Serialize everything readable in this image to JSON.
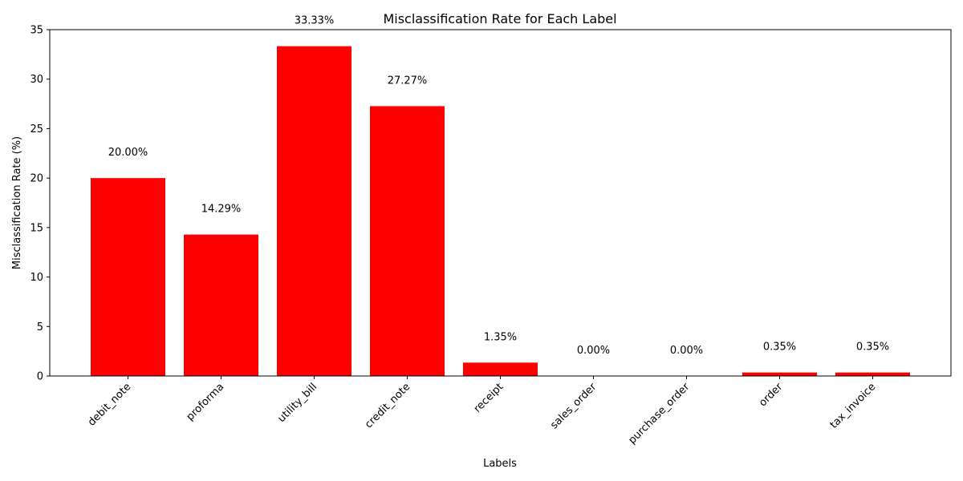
{
  "chart_data": {
    "type": "bar",
    "title": "Misclassification Rate for Each Label",
    "xlabel": "Labels",
    "ylabel": "Misclassification Rate (%)",
    "categories": [
      "debit_note",
      "proforma",
      "utility_bill",
      "credit_note",
      "receipt",
      "sales_order",
      "purchase_order",
      "order",
      "tax_invoice"
    ],
    "values": [
      20.0,
      14.29,
      33.33,
      27.27,
      1.35,
      0.0,
      0.0,
      0.35,
      0.35
    ],
    "data_labels": [
      "20.00%",
      "14.29%",
      "33.33%",
      "27.27%",
      "1.35%",
      "0.00%",
      "0.00%",
      "0.35%",
      "0.35%"
    ],
    "ylim": [
      0,
      35
    ],
    "yticks": [
      0,
      5,
      10,
      15,
      20,
      25,
      30,
      35
    ],
    "bar_color": "#ff0000",
    "grid": false,
    "legend": false
  }
}
